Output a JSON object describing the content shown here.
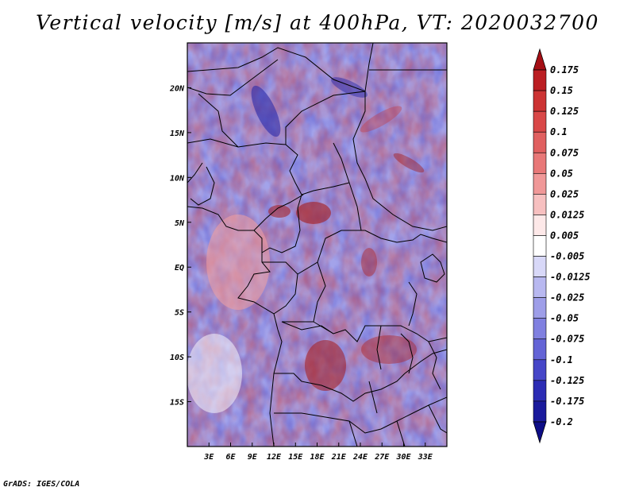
{
  "title": "Vertical velocity [m/s] at 400hPa, VT: 2020032700",
  "footer": "GrADS: IGES/COLA",
  "map": {
    "lon_range": [
      0,
      36
    ],
    "lat_range": [
      -20,
      25
    ],
    "x_ticks": [
      "3E",
      "6E",
      "9E",
      "12E",
      "15E",
      "18E",
      "21E",
      "24E",
      "27E",
      "30E",
      "33E"
    ],
    "x_tick_values": [
      3,
      6,
      9,
      12,
      15,
      18,
      21,
      24,
      27,
      30,
      33
    ],
    "y_ticks": [
      "20N",
      "15N",
      "10N",
      "5N",
      "EQ",
      "5S",
      "10S",
      "15S"
    ],
    "y_tick_values": [
      20,
      15,
      10,
      5,
      0,
      -5,
      -10,
      -15
    ]
  },
  "colorbar": {
    "levels": [
      "0.175",
      "0.15",
      "0.125",
      "0.1",
      "0.075",
      "0.05",
      "0.025",
      "0.0125",
      "0.005",
      "-0.005",
      "-0.0125",
      "-0.025",
      "-0.05",
      "-0.075",
      "-0.1",
      "-0.125",
      "-0.175",
      "-0.2"
    ],
    "colors": [
      "#a50f15",
      "#bb1e22",
      "#cc3333",
      "#d94848",
      "#e06060",
      "#e87878",
      "#f09898",
      "#f7c0c0",
      "#fde8e8",
      "#ffffff",
      "#d8d8f8",
      "#b8b8f0",
      "#9e9ee8",
      "#8080e0",
      "#6464d6",
      "#4646c8",
      "#2c2cb4",
      "#1a1a9c",
      "#0d0d86"
    ]
  }
}
